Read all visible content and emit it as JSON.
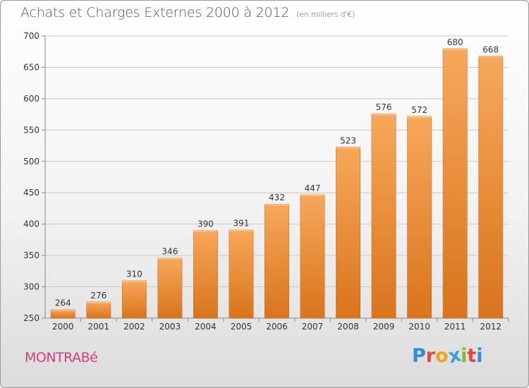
{
  "header": {
    "title": "Achats et Charges Externes 2000 à 2012",
    "unit": "(en milliers d'€)"
  },
  "footer": {
    "town": "MONTRABé",
    "logo_letters": [
      {
        "ch": "P",
        "color": "#2b8fd6"
      },
      {
        "ch": "r",
        "color": "#e8443a"
      },
      {
        "ch": "o",
        "color": "#f0a31a"
      },
      {
        "ch": "x",
        "color": "#3aa1e0"
      },
      {
        "ch": "i",
        "color": "#7cbf2c"
      },
      {
        "ch": "t",
        "color": "#e8443a"
      },
      {
        "ch": "i",
        "color": "#2b8fd6"
      }
    ]
  },
  "colors": {
    "bar_top": "#f7a85a",
    "bar_bottom": "#d9741c",
    "grid": "#c8c8c8",
    "text": "#333333"
  },
  "chart_data": {
    "type": "bar",
    "categories": [
      "2000",
      "2001",
      "2002",
      "2003",
      "2004",
      "2005",
      "2006",
      "2007",
      "2008",
      "2009",
      "2010",
      "2011",
      "2012"
    ],
    "values": [
      264,
      276,
      310,
      346,
      390,
      391,
      432,
      447,
      523,
      576,
      572,
      680,
      668
    ],
    "title": "Achats et Charges Externes 2000 à 2012",
    "subtitle": "(en milliers d'€)",
    "xlabel": "",
    "ylabel": "",
    "ylim": [
      250,
      700
    ],
    "yticks": [
      250,
      300,
      350,
      400,
      450,
      500,
      550,
      600,
      650,
      700
    ],
    "grid": true,
    "data_labels": true
  }
}
